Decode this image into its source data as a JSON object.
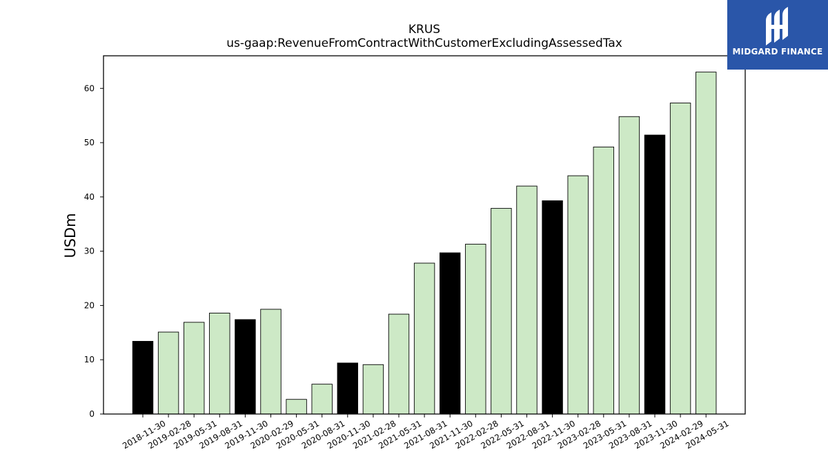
{
  "logo": {
    "text": "MIDGARD FINANCE",
    "background": "#2a56a9"
  },
  "colors": {
    "highlight": "#000000",
    "default": "#cde9c6",
    "edge": "#000000"
  },
  "chart_data": {
    "type": "bar",
    "title": "KRUS",
    "subtitle": "us-gaap:RevenueFromContractWithCustomerExcludingAssessedTax",
    "ylabel": "USDm",
    "xlabel": "",
    "ylim": [
      0,
      66
    ],
    "yticks": [
      0,
      10,
      20,
      30,
      40,
      50,
      60
    ],
    "grid": false,
    "categories": [
      "2018-11-30",
      "2019-02-28",
      "2019-05-31",
      "2019-08-31",
      "2019-11-30",
      "2020-02-29",
      "2020-05-31",
      "2020-08-31",
      "2020-11-30",
      "2021-02-28",
      "2021-05-31",
      "2021-08-31",
      "2021-11-30",
      "2022-02-28",
      "2022-05-31",
      "2022-08-31",
      "2022-11-30",
      "2023-02-28",
      "2023-05-31",
      "2023-08-31",
      "2023-11-30",
      "2024-02-29",
      "2024-05-31"
    ],
    "values": [
      13.4,
      15.1,
      16.9,
      18.6,
      17.4,
      19.3,
      2.7,
      5.5,
      9.4,
      9.1,
      18.4,
      27.8,
      29.7,
      31.3,
      37.9,
      42.0,
      39.3,
      43.9,
      49.2,
      54.8,
      51.4,
      57.3,
      63.0
    ],
    "highlighted": [
      true,
      false,
      false,
      false,
      true,
      false,
      false,
      false,
      true,
      false,
      false,
      false,
      true,
      false,
      false,
      false,
      true,
      false,
      false,
      false,
      true,
      false,
      false
    ]
  }
}
